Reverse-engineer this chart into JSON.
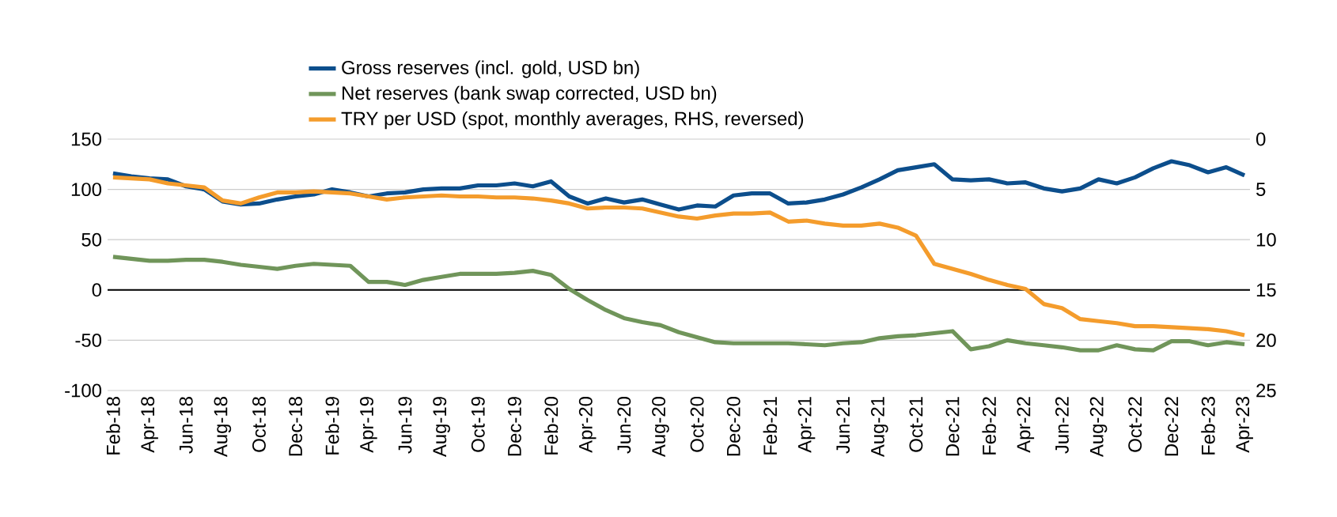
{
  "chart_data": {
    "type": "line",
    "categories": [
      "Feb-18",
      null,
      "Apr-18",
      null,
      "Jun-18",
      null,
      "Aug-18",
      null,
      "Oct-18",
      null,
      "Dec-18",
      null,
      "Feb-19",
      null,
      "Apr-19",
      null,
      "Jun-19",
      null,
      "Aug-19",
      null,
      "Oct-19",
      null,
      "Dec-19",
      null,
      "Feb-20",
      null,
      "Apr-20",
      null,
      "Jun-20",
      null,
      "Aug-20",
      null,
      "Oct-20",
      null,
      "Dec-20",
      null,
      "Feb-21",
      null,
      "Apr-21",
      null,
      "Jun-21",
      null,
      "Aug-21",
      null,
      "Oct-21",
      null,
      "Dec-21",
      null,
      "Feb-22",
      null,
      "Apr-22",
      null,
      "Jun-22",
      null,
      "Aug-22",
      null,
      "Oct-22",
      null,
      "Dec-22",
      null,
      "Feb-23",
      null,
      "Apr-23"
    ],
    "series": [
      {
        "name": "Gross reserves (incl. gold, USD bn)",
        "color": "#0c4e8c",
        "values": [
          116,
          113,
          111,
          110,
          103,
          100,
          88,
          85,
          86,
          90,
          93,
          95,
          100,
          97,
          93,
          96,
          97,
          100,
          101,
          101,
          104,
          104,
          106,
          103,
          108,
          93,
          86,
          91,
          87,
          90,
          85,
          80,
          84,
          83,
          94,
          96,
          96,
          86,
          87,
          90,
          95,
          102,
          110,
          119,
          122,
          125,
          110,
          109,
          110,
          106,
          107,
          101,
          98,
          101,
          110,
          106,
          112,
          121,
          128,
          124,
          117,
          122,
          114
        ]
      },
      {
        "name": "Net reserves (bank swap corrected, USD bn)",
        "color": "#70955a",
        "values": [
          33,
          31,
          29,
          29,
          30,
          30,
          28,
          25,
          23,
          21,
          24,
          26,
          25,
          24,
          8,
          8,
          5,
          10,
          13,
          16,
          16,
          16,
          17,
          19,
          15,
          1,
          -10,
          -20,
          -28,
          -32,
          -35,
          -42,
          -47,
          -52,
          -53,
          -53,
          -53,
          -53,
          -54,
          -55,
          -53,
          -52,
          -48,
          -46,
          -45,
          -43,
          -41,
          -59,
          -56,
          -50,
          -53,
          -55,
          -57,
          -60,
          -60,
          -55,
          -59,
          -60,
          -51,
          -51,
          -55,
          -52,
          -54
        ]
      },
      {
        "name": "TRY per USD (spot, monthly averages, RHS, reversed)",
        "color": "#f49c2c",
        "axis": "y2",
        "values": [
          3.8,
          3.9,
          4.0,
          4.4,
          4.6,
          4.8,
          6.1,
          6.4,
          5.8,
          5.3,
          5.3,
          5.2,
          5.3,
          5.4,
          5.7,
          6.0,
          5.8,
          5.7,
          5.6,
          5.7,
          5.7,
          5.8,
          5.8,
          5.9,
          6.1,
          6.4,
          6.9,
          6.8,
          6.8,
          6.9,
          7.3,
          7.7,
          7.9,
          7.6,
          7.4,
          7.4,
          7.3,
          8.2,
          8.1,
          8.4,
          8.6,
          8.6,
          8.4,
          8.8,
          9.6,
          12.4,
          12.9,
          13.4,
          14.0,
          14.5,
          14.9,
          16.4,
          16.8,
          17.9,
          18.1,
          18.3,
          18.6,
          18.6,
          18.7,
          18.8,
          18.9,
          19.1,
          19.5
        ]
      }
    ],
    "ylim": [
      -100,
      150
    ],
    "yticks": [
      -100,
      -50,
      0,
      50,
      100,
      150
    ],
    "y2lim": [
      25,
      0
    ],
    "y2ticks": [
      0,
      5,
      10,
      15,
      20,
      25
    ],
    "ref_lines": [
      {
        "axis": "y",
        "value": 0,
        "color": "#000000"
      }
    ],
    "grid": "y",
    "legend": "top",
    "line_style": "solid"
  }
}
